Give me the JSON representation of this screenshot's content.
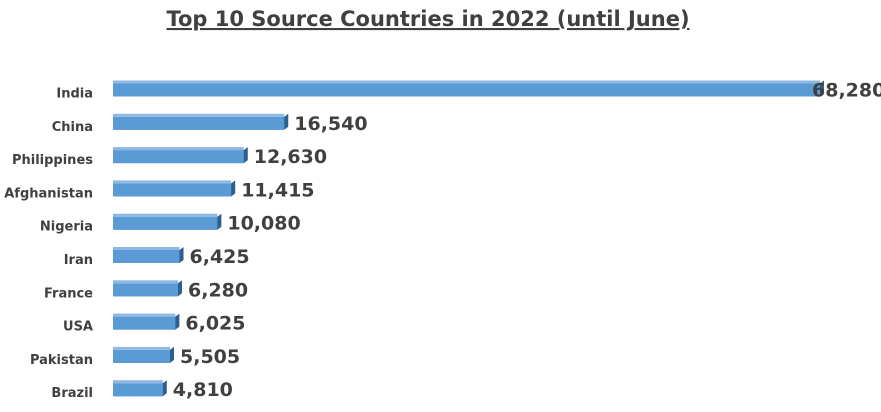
{
  "chart_data": {
    "type": "bar",
    "orientation": "horizontal",
    "title": "Top 10 Source Countries in 2022 (until June)",
    "categories": [
      "India",
      "China",
      "Philippines",
      "Afghanistan",
      "Nigeria",
      "Iran",
      "France",
      "USA",
      "Pakistan",
      "Brazil"
    ],
    "values": [
      68280,
      16540,
      12630,
      11415,
      10080,
      6425,
      6280,
      6025,
      5505,
      4810
    ],
    "value_labels": [
      "68,280",
      "16,540",
      "12,630",
      "11,415",
      "10,080",
      "6,425",
      "6,280",
      "6,025",
      "5,505",
      "4,810"
    ],
    "color": "#5b9bd5"
  }
}
